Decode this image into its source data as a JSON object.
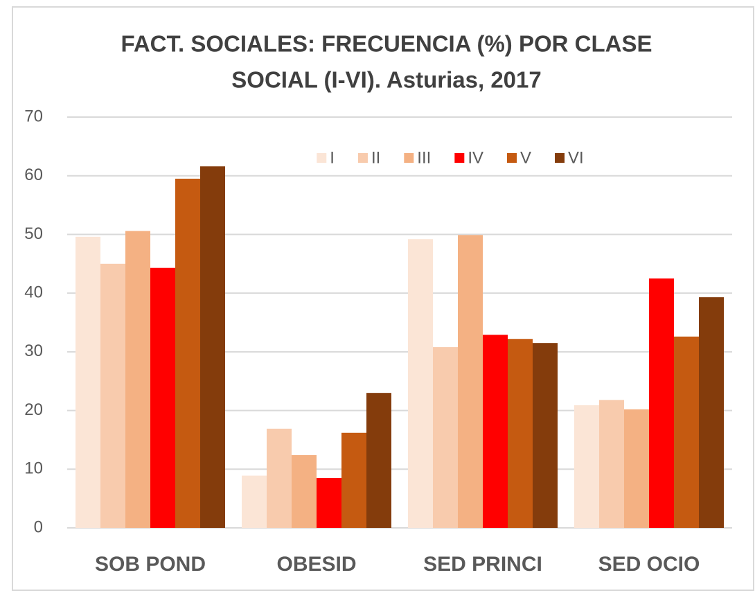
{
  "chart_data": {
    "type": "bar",
    "title": [
      "FACT. SOCIALES: FRECUENCIA (%) POR CLASE",
      "SOCIAL (I-VI). Asturias, 2017"
    ],
    "categories": [
      "SOB POND",
      "OBESID",
      "SED PRINCI",
      "SED OCIO"
    ],
    "series": [
      {
        "name": "I",
        "color": "#fbe5d6",
        "values": [
          49.6,
          8.9,
          49.2,
          20.9
        ]
      },
      {
        "name": "II",
        "color": "#f8cbad",
        "values": [
          45.0,
          16.9,
          30.8,
          21.8
        ]
      },
      {
        "name": "III",
        "color": "#f4b183",
        "values": [
          50.6,
          12.4,
          49.9,
          20.2
        ]
      },
      {
        "name": "IV",
        "color": "#ff0000",
        "values": [
          44.3,
          8.5,
          32.9,
          42.5
        ]
      },
      {
        "name": "V",
        "color": "#c55a11",
        "values": [
          59.5,
          16.2,
          32.2,
          32.6
        ]
      },
      {
        "name": "VI",
        "color": "#843c0c",
        "values": [
          61.6,
          23.0,
          31.5,
          39.3
        ]
      }
    ],
    "ylim": [
      0,
      70
    ],
    "yticks": [
      0,
      10,
      20,
      30,
      40,
      50,
      60,
      70
    ],
    "grid": true,
    "legend": "top"
  }
}
